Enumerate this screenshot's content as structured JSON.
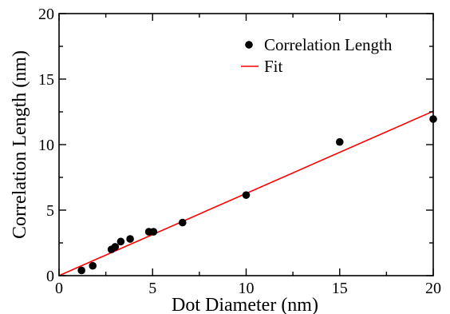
{
  "chart_data": {
    "type": "scatter",
    "title": "",
    "xlabel": "Dot Diameter (nm)",
    "ylabel": "Correlation Length (nm)",
    "xlim": [
      0,
      20
    ],
    "ylim": [
      0,
      20
    ],
    "x_ticks": [
      "0",
      "5",
      "10",
      "15",
      "20"
    ],
    "y_ticks": [
      "0",
      "5",
      "10",
      "15",
      "20"
    ],
    "x_tick_values": [
      0,
      5,
      10,
      15,
      20
    ],
    "y_tick_values": [
      0,
      5,
      10,
      15,
      20
    ],
    "grid": false,
    "legend_position": "top-right",
    "series": [
      {
        "name": "Correlation Length",
        "kind": "scatter",
        "color": "#000000",
        "marker": "filled-circle",
        "points": [
          {
            "x": 1.2,
            "y": 0.4
          },
          {
            "x": 1.8,
            "y": 0.75
          },
          {
            "x": 2.8,
            "y": 2.0
          },
          {
            "x": 3.0,
            "y": 2.2
          },
          {
            "x": 3.3,
            "y": 2.6
          },
          {
            "x": 3.8,
            "y": 2.8
          },
          {
            "x": 4.8,
            "y": 3.35
          },
          {
            "x": 5.05,
            "y": 3.35
          },
          {
            "x": 6.6,
            "y": 4.05
          },
          {
            "x": 10.0,
            "y": 6.15
          },
          {
            "x": 15.0,
            "y": 10.2
          },
          {
            "x": 20.0,
            "y": 11.95
          }
        ]
      },
      {
        "name": "Fit",
        "kind": "line",
        "color": "#ff0000",
        "points": [
          {
            "x": 0,
            "y": 0
          },
          {
            "x": 20,
            "y": 12.55
          }
        ]
      }
    ]
  }
}
